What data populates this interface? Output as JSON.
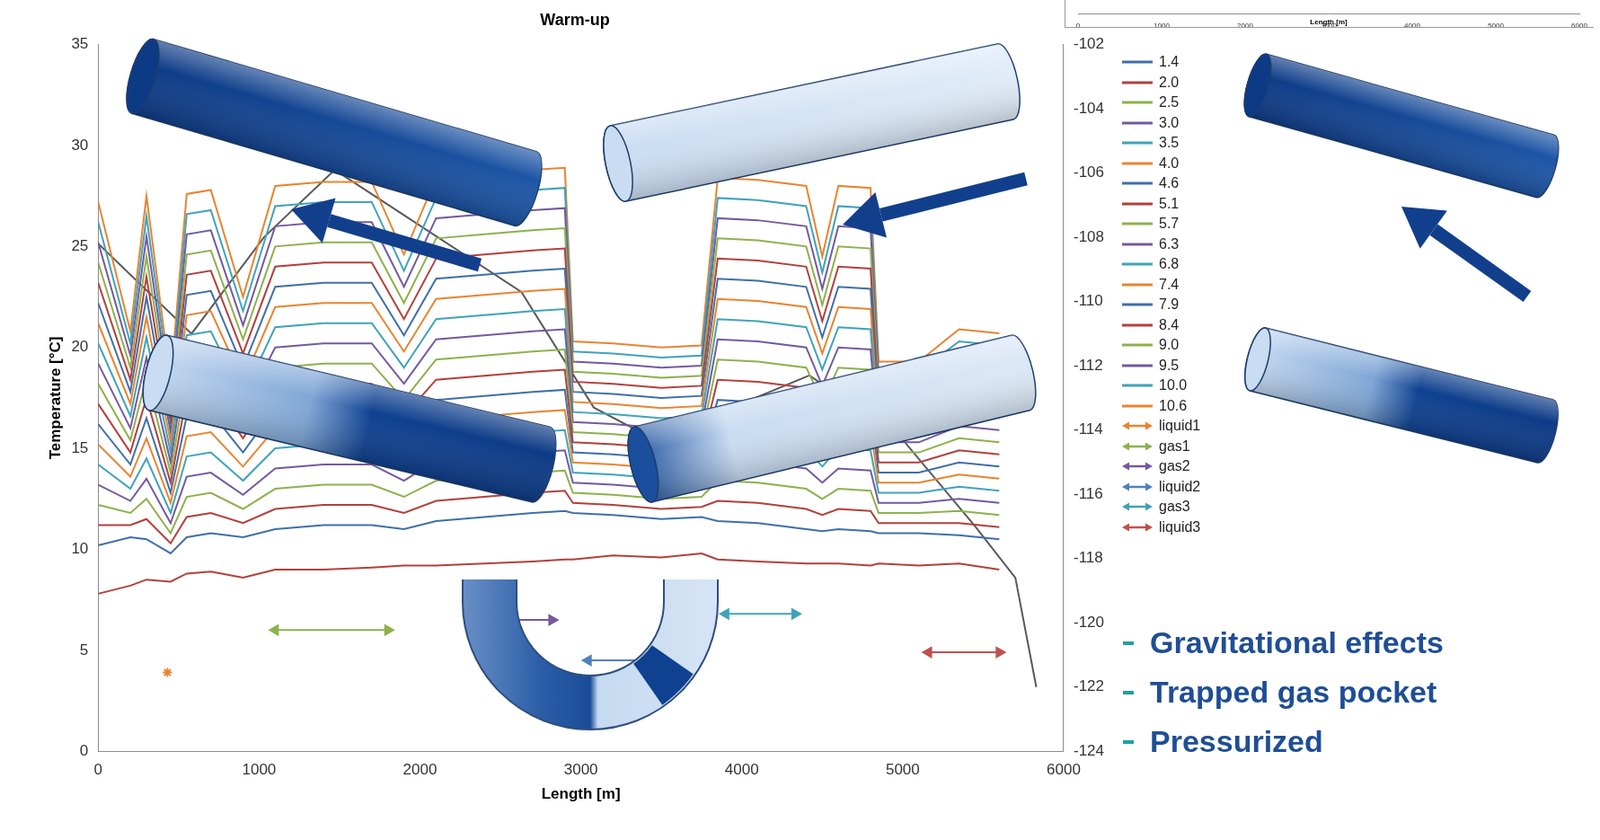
{
  "chart_data": [
    {
      "type": "line",
      "title": "Warm-up",
      "x_label": "Length [m]",
      "y_label": "Temperature [°C]",
      "xlim": [
        0,
        6000
      ],
      "xticks": [
        0,
        1000,
        2000,
        3000,
        4000,
        5000,
        6000
      ],
      "ylim": [
        0,
        35
      ],
      "yticks": [
        0,
        5,
        10,
        15,
        20,
        25,
        30,
        35
      ],
      "y2lim": [
        -124,
        -102
      ],
      "y2ticks": [
        -124,
        -122,
        -120,
        -118,
        -116,
        -114,
        -112,
        -110,
        -108,
        -106,
        -104,
        -102
      ],
      "grid": false,
      "legend": "right",
      "x": [
        0,
        200,
        300,
        450,
        550,
        700,
        900,
        1100,
        1400,
        1700,
        1900,
        2100,
        2400,
        2700,
        2900,
        2950,
        3200,
        3500,
        3750,
        3850,
        4100,
        4400,
        4500,
        4600,
        4800,
        4850,
        5100,
        5350,
        5600
      ],
      "series": [
        {
          "color": "#B2403D",
          "values": [
            7.8,
            8.2,
            8.5,
            8.4,
            8.8,
            8.9,
            8.6,
            9.0,
            9.0,
            9.1,
            9.2,
            9.2,
            9.3,
            9.4,
            9.5,
            9.5,
            9.7,
            9.6,
            9.8,
            9.5,
            9.4,
            9.3,
            9.3,
            9.3,
            9.2,
            9.3,
            9.2,
            9.3,
            9.0
          ]
        },
        {
          "name": "1.4",
          "color": "#3F6FAA",
          "values": [
            10.2,
            10.6,
            10.5,
            9.8,
            10.6,
            10.8,
            10.6,
            11.0,
            11.2,
            11.2,
            11.0,
            11.4,
            11.6,
            11.8,
            11.9,
            11.8,
            11.7,
            11.5,
            11.6,
            11.4,
            11.3,
            11.0,
            10.9,
            11.0,
            10.9,
            10.8,
            10.8,
            10.7,
            10.5
          ]
        },
        {
          "name": "2.0",
          "color": "#B2403D",
          "values": [
            11.2,
            11.2,
            11.5,
            10.3,
            11.6,
            11.8,
            11.3,
            12.0,
            12.2,
            12.2,
            11.8,
            12.4,
            12.6,
            12.8,
            12.9,
            12.3,
            12.2,
            12.0,
            12.1,
            12.4,
            12.3,
            12.0,
            11.7,
            12.0,
            11.9,
            11.3,
            11.3,
            11.3,
            11.1
          ]
        },
        {
          "name": "2.5",
          "color": "#8DB14C",
          "values": [
            12.2,
            11.8,
            12.5,
            10.8,
            12.6,
            12.8,
            12.0,
            13.0,
            13.2,
            13.2,
            12.6,
            13.4,
            13.6,
            13.8,
            13.9,
            12.8,
            12.7,
            12.5,
            12.6,
            13.4,
            13.3,
            13.0,
            12.5,
            13.0,
            12.9,
            11.8,
            11.8,
            11.9,
            11.7
          ]
        },
        {
          "name": "3.0",
          "color": "#7459A0",
          "values": [
            13.2,
            12.4,
            13.5,
            11.3,
            13.6,
            13.8,
            12.7,
            14.0,
            14.2,
            14.2,
            13.4,
            14.4,
            14.6,
            14.8,
            14.9,
            13.3,
            13.2,
            13.0,
            13.1,
            14.4,
            14.3,
            14.0,
            13.3,
            14.0,
            13.9,
            12.3,
            12.3,
            12.5,
            12.3
          ]
        },
        {
          "name": "3.5",
          "color": "#3FA3BA",
          "values": [
            14.2,
            13.0,
            14.5,
            11.8,
            14.6,
            14.8,
            13.4,
            15.0,
            15.2,
            15.2,
            14.2,
            15.4,
            15.6,
            15.8,
            15.9,
            13.8,
            13.7,
            13.5,
            13.6,
            15.4,
            15.3,
            15.0,
            14.1,
            15.0,
            14.9,
            12.8,
            12.8,
            13.1,
            12.9
          ]
        },
        {
          "name": "4.0",
          "color": "#E8842F",
          "values": [
            15.2,
            13.6,
            15.5,
            12.3,
            15.6,
            15.8,
            14.1,
            16.0,
            16.2,
            16.2,
            15.0,
            16.4,
            16.6,
            16.8,
            16.9,
            14.3,
            14.2,
            14.0,
            14.1,
            16.4,
            16.3,
            16.0,
            14.9,
            16.0,
            15.9,
            13.3,
            13.3,
            13.7,
            13.5
          ]
        },
        {
          "name": "4.6",
          "color": "#3F6FAA",
          "values": [
            16.2,
            14.2,
            16.5,
            12.8,
            16.6,
            16.8,
            14.8,
            17.0,
            17.2,
            17.2,
            15.8,
            17.4,
            17.6,
            17.8,
            17.9,
            14.8,
            14.7,
            14.5,
            14.6,
            17.4,
            17.3,
            17.0,
            15.7,
            17.0,
            16.9,
            13.8,
            13.8,
            14.3,
            14.1
          ]
        },
        {
          "name": "5.1",
          "color": "#B2403D",
          "values": [
            17.2,
            14.8,
            17.5,
            13.3,
            17.6,
            17.8,
            15.5,
            18.0,
            18.2,
            18.2,
            16.6,
            18.4,
            18.6,
            18.8,
            18.9,
            15.3,
            15.2,
            15.0,
            15.1,
            18.4,
            18.3,
            18.0,
            16.5,
            18.0,
            17.9,
            14.3,
            14.3,
            14.9,
            14.7
          ]
        },
        {
          "name": "5.7",
          "color": "#8DB14C",
          "values": [
            18.2,
            15.4,
            18.5,
            13.8,
            18.6,
            18.8,
            16.2,
            19.0,
            19.2,
            19.2,
            17.4,
            19.4,
            19.6,
            19.8,
            19.9,
            15.8,
            15.7,
            15.5,
            15.6,
            19.4,
            19.3,
            19.0,
            17.3,
            19.0,
            18.9,
            14.8,
            14.8,
            15.5,
            15.3
          ]
        },
        {
          "name": "6.3",
          "color": "#7459A0",
          "values": [
            19.2,
            16.0,
            19.5,
            14.3,
            19.6,
            19.8,
            16.9,
            20.0,
            20.2,
            20.2,
            18.2,
            20.4,
            20.6,
            20.8,
            20.9,
            16.3,
            16.2,
            16.0,
            16.1,
            20.4,
            20.3,
            20.0,
            18.1,
            20.0,
            19.9,
            15.3,
            15.3,
            16.1,
            15.9
          ]
        },
        {
          "name": "6.8",
          "color": "#3FA3BA",
          "values": [
            20.2,
            16.6,
            20.5,
            14.8,
            20.6,
            20.8,
            17.6,
            21.0,
            21.2,
            21.2,
            19.0,
            21.4,
            21.6,
            21.8,
            21.9,
            16.8,
            16.7,
            16.5,
            16.6,
            21.4,
            21.3,
            21.0,
            18.9,
            21.0,
            20.9,
            15.8,
            15.8,
            16.7,
            16.5
          ]
        },
        {
          "name": "7.4",
          "color": "#E8842F",
          "values": [
            21.2,
            17.2,
            21.5,
            15.3,
            21.6,
            21.8,
            18.3,
            22.0,
            22.2,
            22.2,
            19.8,
            22.4,
            22.6,
            22.8,
            22.9,
            17.3,
            17.2,
            17.0,
            17.1,
            22.4,
            22.3,
            22.0,
            19.7,
            22.0,
            21.9,
            16.3,
            16.3,
            17.3,
            17.1
          ]
        },
        {
          "name": "7.9",
          "color": "#3F6FAA",
          "values": [
            22.2,
            17.8,
            22.5,
            15.8,
            22.6,
            22.8,
            19.0,
            23.0,
            23.2,
            23.2,
            20.6,
            23.4,
            23.6,
            23.8,
            23.9,
            17.8,
            17.7,
            17.5,
            17.6,
            23.4,
            23.3,
            23.0,
            20.5,
            23.0,
            22.9,
            16.8,
            16.8,
            17.9,
            17.7
          ]
        },
        {
          "name": "8.4",
          "color": "#B2403D",
          "values": [
            23.2,
            18.4,
            23.5,
            16.3,
            23.6,
            23.8,
            19.7,
            24.0,
            24.2,
            24.2,
            21.4,
            24.4,
            24.6,
            24.8,
            24.9,
            18.3,
            18.2,
            18.0,
            18.1,
            24.4,
            24.3,
            24.0,
            21.3,
            24.0,
            23.9,
            17.3,
            17.3,
            18.5,
            18.3
          ]
        },
        {
          "name": "9.0",
          "color": "#8DB14C",
          "values": [
            24.2,
            19.0,
            24.5,
            16.8,
            24.6,
            24.8,
            20.4,
            25.0,
            25.2,
            25.2,
            22.2,
            25.4,
            25.6,
            25.8,
            25.9,
            18.8,
            18.7,
            18.5,
            18.6,
            25.4,
            25.3,
            25.0,
            22.1,
            25.0,
            24.9,
            17.8,
            17.8,
            19.1,
            18.9
          ]
        },
        {
          "name": "9.5",
          "color": "#7459A0",
          "values": [
            25.2,
            19.6,
            25.5,
            17.3,
            25.6,
            25.8,
            21.1,
            26.0,
            26.2,
            26.2,
            23.0,
            26.4,
            26.6,
            26.8,
            26.9,
            19.3,
            19.2,
            19.0,
            19.1,
            26.4,
            26.3,
            26.0,
            22.9,
            26.0,
            25.9,
            18.3,
            18.3,
            19.7,
            19.5
          ]
        },
        {
          "name": "10.0",
          "color": "#3FA3BA",
          "values": [
            26.2,
            20.2,
            26.5,
            17.8,
            26.6,
            26.8,
            21.8,
            27.0,
            27.2,
            27.2,
            23.8,
            27.4,
            27.6,
            27.8,
            27.9,
            19.8,
            19.7,
            19.5,
            19.6,
            27.4,
            27.3,
            27.0,
            23.7,
            27.0,
            26.9,
            18.8,
            18.8,
            20.3,
            20.1
          ]
        },
        {
          "name": "10.6",
          "color": "#E8842F",
          "values": [
            27.2,
            20.8,
            27.5,
            18.3,
            27.6,
            27.8,
            22.5,
            28.0,
            28.2,
            28.2,
            24.6,
            28.4,
            28.6,
            28.8,
            28.9,
            20.3,
            20.2,
            20.0,
            20.1,
            28.4,
            28.3,
            28.0,
            24.5,
            28.0,
            27.9,
            19.3,
            19.3,
            20.9,
            20.7
          ]
        },
        {
          "name": "liquid1",
          "color": "#E8842F",
          "marker": "star",
          "x": [
            430
          ],
          "values": [
            3.9
          ]
        },
        {
          "name": "gas1",
          "color": "#8DB14C",
          "marker": "arrow",
          "x": [
            1100,
            1800
          ],
          "values": [
            6.0,
            6.0
          ]
        },
        {
          "name": "gas2",
          "color": "#7459A0",
          "marker": "arrow",
          "x": [
            2400,
            2820
          ],
          "values": [
            6.5,
            6.5
          ]
        },
        {
          "name": "liquid2",
          "color": "#4F81BD",
          "marker": "arrow",
          "x": [
            3045,
            3560
          ],
          "values": [
            4.5,
            4.5
          ]
        },
        {
          "name": "gas3",
          "color": "#3FA3BA",
          "marker": "arrow",
          "x": [
            3900,
            4330
          ],
          "values": [
            6.8,
            6.8
          ]
        },
        {
          "name": "liquid3",
          "color": "#C0504D",
          "marker": "arrow",
          "x": [
            5160,
            5600
          ],
          "values": [
            4.9,
            4.9
          ]
        },
        {
          "color": "#595959",
          "axis": "y2",
          "x": [
            0,
            580,
            1030,
            1470,
            2630,
            3080,
            3460,
            4420,
            5000,
            5450,
            5700,
            5830
          ],
          "values": [
            -108.2,
            -111.0,
            -108.0,
            -105.9,
            -109.7,
            -113.3,
            -114.3,
            -112.3,
            -114.3,
            -117.0,
            -118.6,
            -122.0
          ]
        }
      ],
      "annotations": [
        "Gravitational effects",
        "Trapped gas pocket",
        "Pressurized"
      ]
    },
    {
      "type": "line",
      "x_label": "Length [m]",
      "xlim": [
        0,
        6000
      ],
      "xticks": [
        0,
        1000,
        2000,
        3000,
        4000,
        5000,
        6000
      ],
      "tick_labels": "x"
    }
  ]
}
